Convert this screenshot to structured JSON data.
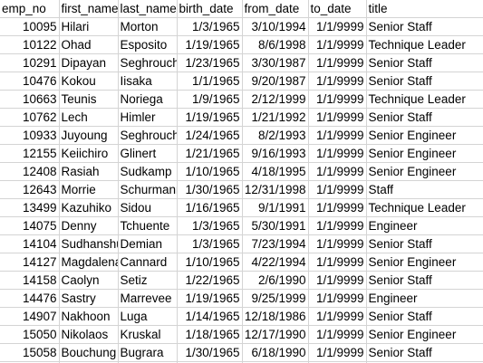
{
  "headers": [
    "emp_no",
    "first_name",
    "last_name",
    "birth_date",
    "from_date",
    "to_date",
    "title"
  ],
  "rows": [
    [
      "10095",
      "Hilari",
      "Morton",
      "1/3/1965",
      "3/10/1994",
      "1/1/9999",
      "Senior Staff"
    ],
    [
      "10122",
      "Ohad",
      "Esposito",
      "1/19/1965",
      "8/6/1998",
      "1/1/9999",
      "Technique Leader"
    ],
    [
      "10291",
      "Dipayan",
      "Seghrouchni",
      "1/23/1965",
      "3/30/1987",
      "1/1/9999",
      "Senior Staff"
    ],
    [
      "10476",
      "Kokou",
      "Iisaka",
      "1/1/1965",
      "9/20/1987",
      "1/1/9999",
      "Senior Staff"
    ],
    [
      "10663",
      "Teunis",
      "Noriega",
      "1/9/1965",
      "2/12/1999",
      "1/1/9999",
      "Technique Leader"
    ],
    [
      "10762",
      "Lech",
      "Himler",
      "1/19/1965",
      "1/21/1992",
      "1/1/9999",
      "Senior Staff"
    ],
    [
      "10933",
      "Juyoung",
      "Seghrouchni",
      "1/24/1965",
      "8/2/1993",
      "1/1/9999",
      "Senior Engineer"
    ],
    [
      "12155",
      "Keiichiro",
      "Glinert",
      "1/21/1965",
      "9/16/1993",
      "1/1/9999",
      "Senior Engineer"
    ],
    [
      "12408",
      "Rasiah",
      "Sudkamp",
      "1/10/1965",
      "4/18/1995",
      "1/1/9999",
      "Senior Engineer"
    ],
    [
      "12643",
      "Morrie",
      "Schurmann",
      "1/30/1965",
      "12/31/1998",
      "1/1/9999",
      "Staff"
    ],
    [
      "13499",
      "Kazuhiko",
      "Sidou",
      "1/16/1965",
      "9/1/1991",
      "1/1/9999",
      "Technique Leader"
    ],
    [
      "14075",
      "Denny",
      "Tchuente",
      "1/3/1965",
      "5/30/1991",
      "1/1/9999",
      "Engineer"
    ],
    [
      "14104",
      "Sudhanshu",
      "Demian",
      "1/3/1965",
      "7/23/1994",
      "1/1/9999",
      "Senior Staff"
    ],
    [
      "14127",
      "Magdalena",
      "Cannard",
      "1/10/1965",
      "4/22/1994",
      "1/1/9999",
      "Senior Engineer"
    ],
    [
      "14158",
      "Caolyn",
      "Setiz",
      "1/22/1965",
      "2/6/1990",
      "1/1/9999",
      "Senior Staff"
    ],
    [
      "14476",
      "Sastry",
      "Marrevee",
      "1/19/1965",
      "9/25/1999",
      "1/1/9999",
      "Engineer"
    ],
    [
      "14907",
      "Nakhoon",
      "Luga",
      "1/14/1965",
      "12/18/1986",
      "1/1/9999",
      "Senior Staff"
    ],
    [
      "15050",
      "Nikolaos",
      "Kruskal",
      "1/18/1965",
      "12/17/1990",
      "1/1/9999",
      "Senior Engineer"
    ],
    [
      "15058",
      "Bouchung",
      "Bugrara",
      "1/30/1965",
      "6/18/1990",
      "1/1/9999",
      "Senior Staff"
    ],
    [
      "",
      "",
      "",
      "",
      "",
      "",
      ""
    ]
  ]
}
